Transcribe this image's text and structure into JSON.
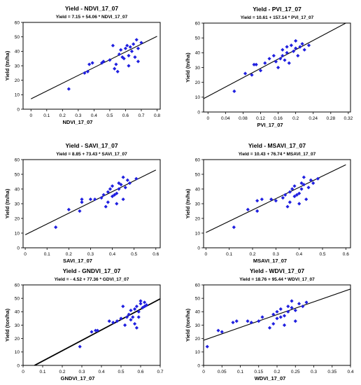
{
  "chart_data": [
    {
      "type": "scatter",
      "title": "Yield - NDVI_17_07",
      "equation": "Yield = 7.15 + 54.06 * NDVI_17_07",
      "xlabel": "NDVI_17_07",
      "ylabel": "Yield (tn/ha)",
      "xlim": [
        -0.05,
        0.82
      ],
      "ylim": [
        0,
        60
      ],
      "xticks": [
        "0",
        "0.1",
        "0.2",
        "0.3",
        "0.4",
        "0.5",
        "0.6",
        "0.7",
        "0.8"
      ],
      "yticks": [
        "0",
        "10",
        "20",
        "30",
        "40",
        "50",
        "60"
      ],
      "regression": {
        "intercept": 7.15,
        "slope": 54.06,
        "x_range": [
          0.0,
          0.8
        ]
      },
      "points": [
        [
          0.24,
          14
        ],
        [
          0.34,
          25
        ],
        [
          0.36,
          26
        ],
        [
          0.37,
          31
        ],
        [
          0.39,
          32
        ],
        [
          0.45,
          32
        ],
        [
          0.46,
          33
        ],
        [
          0.5,
          34
        ],
        [
          0.52,
          44
        ],
        [
          0.53,
          28
        ],
        [
          0.54,
          31
        ],
        [
          0.55,
          26
        ],
        [
          0.56,
          38
        ],
        [
          0.57,
          41
        ],
        [
          0.58,
          36
        ],
        [
          0.59,
          35
        ],
        [
          0.6,
          42
        ],
        [
          0.61,
          44
        ],
        [
          0.62,
          37
        ],
        [
          0.62,
          30
        ],
        [
          0.63,
          43
        ],
        [
          0.64,
          40
        ],
        [
          0.65,
          45
        ],
        [
          0.66,
          36
        ],
        [
          0.67,
          48
        ],
        [
          0.68,
          42
        ],
        [
          0.7,
          46
        ],
        [
          0.68,
          33
        ]
      ]
    },
    {
      "type": "scatter",
      "title": "Yield - PVI_17_07",
      "equation": "Yield = 10.61 + 157.14 * PVI_17_07",
      "xlabel": "PVI_17_07",
      "ylabel": "Yield (tn/ha)",
      "xlim": [
        -0.01,
        0.325
      ],
      "ylim": [
        0,
        60
      ],
      "xticks": [
        "0",
        "0.04",
        "0.08",
        "0.12",
        "0.16",
        "0.2",
        "0.24",
        "0.28",
        "0.32"
      ],
      "yticks": [
        "0",
        "10",
        "20",
        "30",
        "40",
        "50",
        "60"
      ],
      "regression": {
        "intercept": 10.61,
        "slope": 157.14,
        "x_range": [
          -0.01,
          0.32
        ]
      },
      "points": [
        [
          0.06,
          14
        ],
        [
          0.085,
          26
        ],
        [
          0.1,
          25
        ],
        [
          0.105,
          32
        ],
        [
          0.11,
          32
        ],
        [
          0.12,
          28
        ],
        [
          0.13,
          33
        ],
        [
          0.14,
          36
        ],
        [
          0.15,
          38
        ],
        [
          0.155,
          34
        ],
        [
          0.16,
          30
        ],
        [
          0.165,
          36
        ],
        [
          0.17,
          38
        ],
        [
          0.17,
          42
        ],
        [
          0.175,
          35
        ],
        [
          0.18,
          40
        ],
        [
          0.18,
          44
        ],
        [
          0.185,
          33
        ],
        [
          0.19,
          45
        ],
        [
          0.195,
          41
        ],
        [
          0.2,
          43
        ],
        [
          0.2,
          48
        ],
        [
          0.205,
          38
        ],
        [
          0.21,
          44
        ],
        [
          0.215,
          46
        ],
        [
          0.22,
          42
        ],
        [
          0.23,
          45
        ]
      ]
    },
    {
      "type": "scatter",
      "title": "Yield - SAVI_17_07",
      "equation": "Yield = 8.85 + 73.43 * SAVI_17_07",
      "xlabel": "SAVI_17_07",
      "ylabel": "Yield (tn/ha)",
      "xlim": [
        -0.01,
        0.62
      ],
      "ylim": [
        0,
        60
      ],
      "xticks": [
        "0",
        "0.1",
        "0.2",
        "0.3",
        "0.4",
        "0.5",
        "0.6"
      ],
      "yticks": [
        "0",
        "10",
        "20",
        "30",
        "40",
        "50",
        "60"
      ],
      "regression": {
        "intercept": 8.85,
        "slope": 73.43,
        "x_range": [
          0.0,
          0.6
        ]
      },
      "points": [
        [
          0.14,
          14
        ],
        [
          0.2,
          26
        ],
        [
          0.25,
          25
        ],
        [
          0.26,
          31
        ],
        [
          0.26,
          33
        ],
        [
          0.3,
          33
        ],
        [
          0.32,
          33
        ],
        [
          0.35,
          34
        ],
        [
          0.36,
          36
        ],
        [
          0.37,
          28
        ],
        [
          0.38,
          31
        ],
        [
          0.38,
          38
        ],
        [
          0.39,
          40
        ],
        [
          0.4,
          35
        ],
        [
          0.4,
          42
        ],
        [
          0.41,
          36
        ],
        [
          0.42,
          37
        ],
        [
          0.42,
          30
        ],
        [
          0.43,
          44
        ],
        [
          0.43,
          40
        ],
        [
          0.44,
          43
        ],
        [
          0.45,
          48
        ],
        [
          0.45,
          33
        ],
        [
          0.46,
          41
        ],
        [
          0.47,
          46
        ],
        [
          0.48,
          44
        ],
        [
          0.51,
          47
        ]
      ]
    },
    {
      "type": "scatter",
      "title": "Yield - MSAVI_17_07",
      "equation": "Yield = 10.43 + 76.74 * MSAVI_17_07",
      "xlabel": "MSAVI_17_07",
      "ylabel": "Yield (tn/ha)",
      "xlim": [
        -0.01,
        0.62
      ],
      "ylim": [
        0,
        60
      ],
      "xticks": [
        "0",
        "0.1",
        "0.2",
        "0.3",
        "0.4",
        "0.5",
        "0.6"
      ],
      "yticks": [
        "0",
        "10",
        "20",
        "30",
        "40",
        "50",
        "60"
      ],
      "regression": {
        "intercept": 10.43,
        "slope": 76.74,
        "x_range": [
          0.0,
          0.6
        ]
      },
      "points": [
        [
          0.12,
          14
        ],
        [
          0.18,
          26
        ],
        [
          0.22,
          25
        ],
        [
          0.22,
          32
        ],
        [
          0.24,
          33
        ],
        [
          0.28,
          33
        ],
        [
          0.3,
          32
        ],
        [
          0.33,
          34
        ],
        [
          0.34,
          36
        ],
        [
          0.35,
          28
        ],
        [
          0.36,
          31
        ],
        [
          0.36,
          38
        ],
        [
          0.37,
          40
        ],
        [
          0.38,
          35
        ],
        [
          0.38,
          42
        ],
        [
          0.39,
          36
        ],
        [
          0.4,
          37
        ],
        [
          0.4,
          30
        ],
        [
          0.41,
          44
        ],
        [
          0.41,
          40
        ],
        [
          0.42,
          43
        ],
        [
          0.42,
          48
        ],
        [
          0.43,
          33
        ],
        [
          0.44,
          41
        ],
        [
          0.45,
          46
        ],
        [
          0.46,
          44
        ],
        [
          0.48,
          47
        ]
      ]
    },
    {
      "type": "scatter",
      "title": "Yield - GNDVI_17_07",
      "equation": "Yield = - 4.52 + 77.36 * GDVI_17_07",
      "xlabel": "GNDVI_17_07",
      "ylabel": "Yield (ton/ha)",
      "xlim": [
        0,
        0.7
      ],
      "ylim": [
        0,
        60
      ],
      "xticks": [
        "0",
        "0.1",
        "0.2",
        "0.3",
        "0.4",
        "0.5",
        "0.6",
        "0.7"
      ],
      "yticks": [
        "0",
        "10",
        "20",
        "30",
        "40",
        "50",
        "60"
      ],
      "regression": {
        "intercept": -4.52,
        "slope": 77.36,
        "x_range": [
          0.058,
          0.7
        ]
      },
      "points": [
        [
          0.29,
          14
        ],
        [
          0.35,
          25
        ],
        [
          0.37,
          26
        ],
        [
          0.38,
          26
        ],
        [
          0.44,
          33
        ],
        [
          0.46,
          32
        ],
        [
          0.48,
          33
        ],
        [
          0.5,
          35
        ],
        [
          0.51,
          44
        ],
        [
          0.52,
          30
        ],
        [
          0.53,
          36
        ],
        [
          0.54,
          38
        ],
        [
          0.55,
          41
        ],
        [
          0.55,
          34
        ],
        [
          0.56,
          36
        ],
        [
          0.57,
          42
        ],
        [
          0.57,
          31
        ],
        [
          0.58,
          44
        ],
        [
          0.59,
          40
        ],
        [
          0.59,
          36
        ],
        [
          0.6,
          46
        ],
        [
          0.6,
          48
        ],
        [
          0.61,
          43
        ],
        [
          0.62,
          47
        ],
        [
          0.62,
          44
        ],
        [
          0.63,
          45
        ],
        [
          0.58,
          28
        ]
      ]
    },
    {
      "type": "scatter",
      "title": "Yield - WDVI_17_07",
      "equation": "Yield = 18.76 + 95.44 * WDVI_17_07",
      "xlabel": "WDVI_17_07",
      "ylabel": "Yield (ton/ha)",
      "xlim": [
        0,
        0.4
      ],
      "ylim": [
        0,
        60
      ],
      "xticks": [
        "0",
        "0.05",
        "0.1",
        "0.15",
        "0.2",
        "0.25",
        "0.3",
        "0.35",
        "0.4"
      ],
      "yticks": [
        "0",
        "10",
        "20",
        "30",
        "40",
        "50",
        "60"
      ],
      "regression": {
        "intercept": 18.76,
        "slope": 95.44,
        "x_range": [
          0.0,
          0.4
        ]
      },
      "points": [
        [
          0.01,
          14
        ],
        [
          0.04,
          26
        ],
        [
          0.05,
          25
        ],
        [
          0.08,
          32
        ],
        [
          0.09,
          33
        ],
        [
          0.12,
          33
        ],
        [
          0.13,
          32
        ],
        [
          0.15,
          33
        ],
        [
          0.16,
          36
        ],
        [
          0.18,
          28
        ],
        [
          0.19,
          31
        ],
        [
          0.19,
          38
        ],
        [
          0.2,
          40
        ],
        [
          0.2,
          35
        ],
        [
          0.21,
          42
        ],
        [
          0.21,
          36
        ],
        [
          0.22,
          37
        ],
        [
          0.22,
          30
        ],
        [
          0.23,
          44
        ],
        [
          0.23,
          40
        ],
        [
          0.24,
          43
        ],
        [
          0.24,
          48
        ],
        [
          0.25,
          33
        ],
        [
          0.25,
          41
        ],
        [
          0.26,
          46
        ],
        [
          0.27,
          44
        ],
        [
          0.28,
          47
        ]
      ]
    }
  ]
}
